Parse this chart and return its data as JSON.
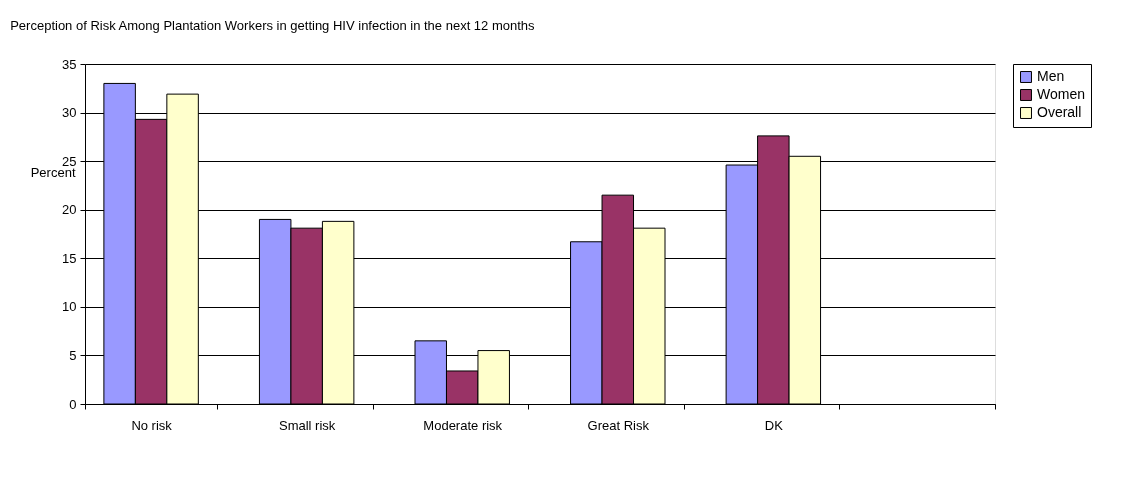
{
  "chart_data": {
    "type": "bar",
    "title": "Perception of Risk Among Plantation Workers in getting HIV infection in the next 12 months",
    "ylabel": "Percent",
    "categories": [
      "No risk",
      "Small risk",
      "Moderate risk",
      "Great Risk",
      "DK",
      null
    ],
    "series": [
      {
        "name": "Men",
        "color": "#9999ff",
        "values": [
          33.0,
          19.0,
          6.5,
          16.7,
          24.6,
          null
        ]
      },
      {
        "name": "Women",
        "color": "#993366",
        "values": [
          29.3,
          18.1,
          3.4,
          21.5,
          27.6,
          null
        ]
      },
      {
        "name": "Overall",
        "color": "#ffffcc",
        "values": [
          31.9,
          18.8,
          5.5,
          18.1,
          25.5,
          null
        ]
      }
    ],
    "ylim": [
      0,
      35
    ],
    "yticks": [
      0,
      5,
      10,
      15,
      20,
      25,
      30,
      35
    ],
    "grid": "y",
    "legend": "right"
  }
}
